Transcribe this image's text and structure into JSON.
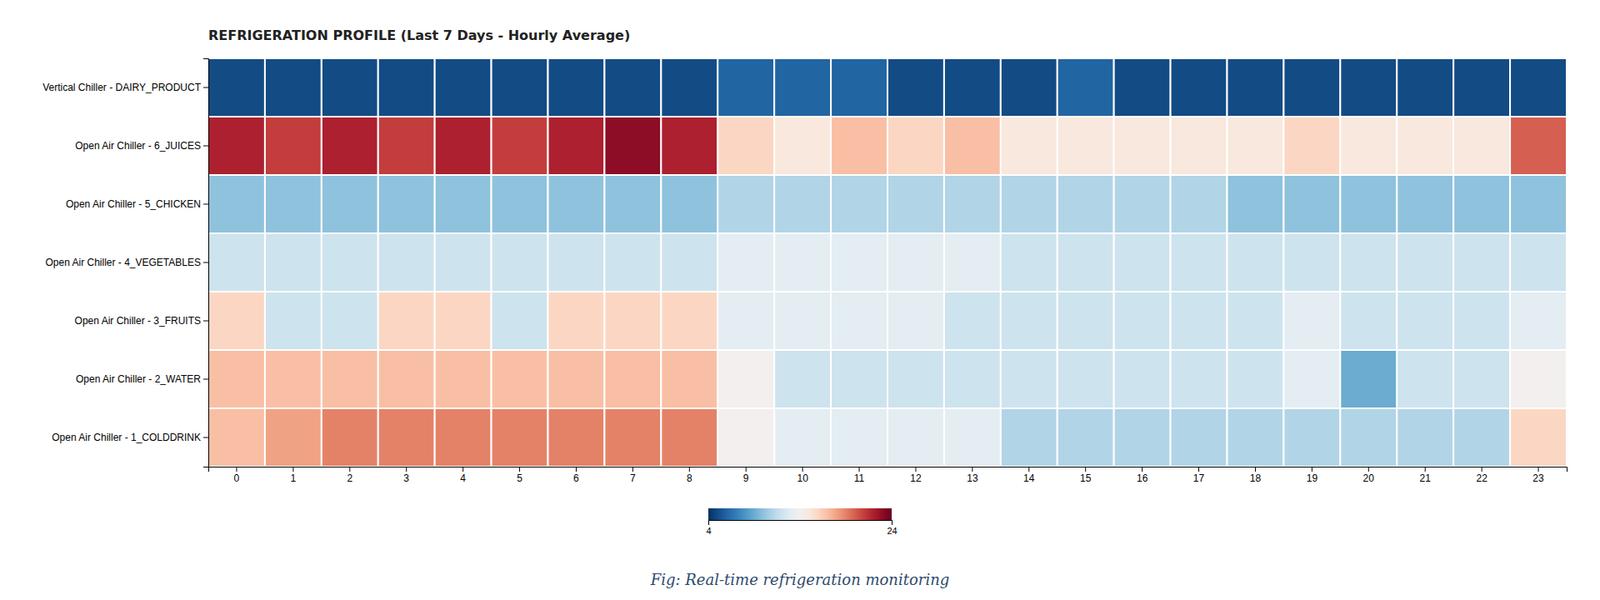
{
  "chart_data": {
    "type": "heatmap",
    "title": "REFRIGERATION PROFILE (Last 7 Days - Hourly Average)",
    "caption": "Fig: Real-time refrigeration monitoring",
    "categories": [
      0,
      1,
      2,
      3,
      4,
      5,
      6,
      7,
      8,
      9,
      10,
      11,
      12,
      13,
      14,
      15,
      16,
      17,
      18,
      19,
      20,
      21,
      22,
      23
    ],
    "rows": [
      "Vertical Chiller - DAIRY_PRODUCT",
      "Open Air Chiller - 6_JUICES",
      "Open Air Chiller - 5_CHICKEN",
      "Open Air Chiller - 4_VEGETABLES",
      "Open Air Chiller - 3_FRUITS",
      "Open Air Chiller - 2_WATER",
      "Open Air Chiller - 1_COLDDRINK"
    ],
    "values": [
      [
        5,
        5,
        5,
        5,
        5,
        5,
        5,
        5,
        5,
        6,
        6,
        6,
        5,
        5,
        5,
        6,
        5,
        5,
        5,
        5,
        5,
        5,
        5,
        5
      ],
      [
        22,
        21,
        22,
        21,
        22,
        21,
        22,
        23,
        22,
        16,
        15,
        17,
        16,
        17,
        15,
        15,
        15,
        15,
        15,
        16,
        15,
        15,
        15,
        20
      ],
      [
        10,
        10,
        10,
        10,
        10,
        10,
        10,
        10,
        10,
        11,
        11,
        11,
        11,
        11,
        11,
        11,
        11,
        11,
        10,
        10,
        10,
        10,
        10,
        10
      ],
      [
        12,
        12,
        12,
        12,
        12,
        12,
        12,
        12,
        12,
        13,
        13,
        13,
        13,
        13,
        12,
        12,
        12,
        12,
        12,
        12,
        12,
        12,
        12,
        12
      ],
      [
        16,
        12,
        12,
        16,
        16,
        12,
        16,
        16,
        16,
        13,
        13,
        13,
        13,
        12,
        12,
        12,
        12,
        12,
        12,
        13,
        12,
        12,
        12,
        13
      ],
      [
        17,
        17,
        17,
        17,
        17,
        17,
        17,
        17,
        17,
        14,
        12,
        12,
        12,
        12,
        12,
        12,
        12,
        12,
        12,
        13,
        9,
        12,
        12,
        14
      ],
      [
        17,
        18,
        19,
        19,
        19,
        19,
        19,
        19,
        19,
        14,
        13,
        13,
        13,
        13,
        11,
        11,
        11,
        11,
        11,
        11,
        11,
        11,
        11,
        16
      ]
    ],
    "colorbar_range": [
      4,
      24
    ],
    "colorbar_ticks": [
      4,
      24
    ],
    "grid": false
  }
}
